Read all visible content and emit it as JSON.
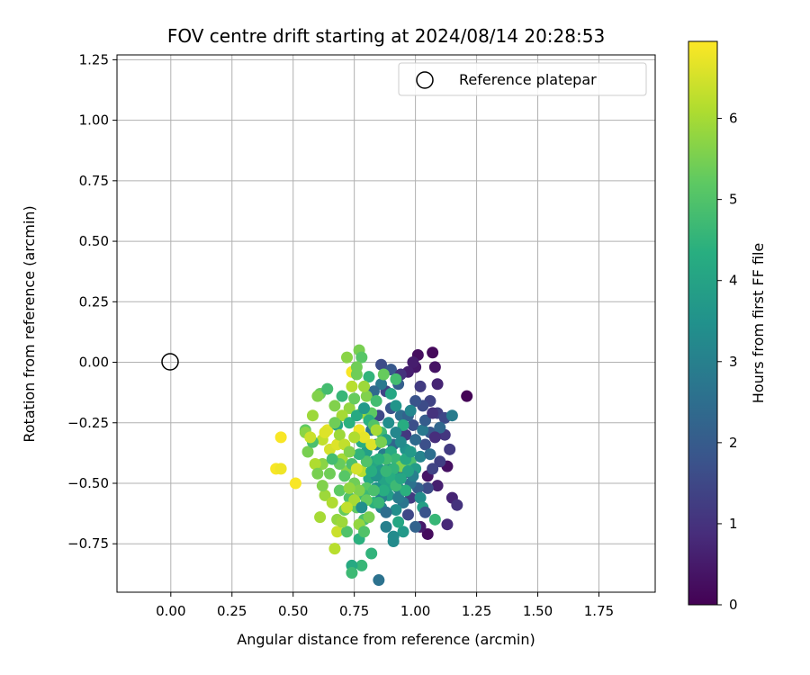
{
  "chart_data": {
    "type": "scatter",
    "title": "FOV centre drift starting at 2024/08/14 20:28:53",
    "xlabel": "Angular distance from reference (arcmin)",
    "ylabel": "Rotation from reference (arcmin)",
    "xlim": [
      -0.22,
      1.98
    ],
    "ylim": [
      -0.95,
      1.27
    ],
    "xticks": [
      0.0,
      0.25,
      0.5,
      0.75,
      1.0,
      1.25,
      1.5,
      1.75
    ],
    "xtick_labels": [
      "0.00",
      "0.25",
      "0.50",
      "0.75",
      "1.00",
      "1.25",
      "1.50",
      "1.75"
    ],
    "yticks": [
      -0.75,
      -0.5,
      -0.25,
      0.0,
      0.25,
      0.5,
      0.75,
      1.0,
      1.25
    ],
    "ytick_labels": [
      "−0.75",
      "−0.50",
      "−0.25",
      "0.00",
      "0.25",
      "0.50",
      "0.75",
      "1.00",
      "1.25"
    ],
    "grid": true,
    "legend": {
      "placement": "top-right",
      "entries": [
        {
          "label": "Reference platepar",
          "marker": "open-circle"
        }
      ]
    },
    "reference_point": {
      "x": 0.0,
      "y": 0.0
    },
    "colorbar": {
      "label": "Hours from first FF file",
      "range": [
        0,
        6.95
      ],
      "ticks": [
        0,
        1,
        2,
        3,
        4,
        5,
        6
      ],
      "tick_labels": [
        "0",
        "1",
        "2",
        "3",
        "4",
        "5",
        "6"
      ],
      "colormap": "viridis"
    },
    "points": [
      {
        "x": 1.21,
        "y": -0.14,
        "c": 0.05
      },
      {
        "x": 1.07,
        "y": 0.04,
        "c": 0.15
      },
      {
        "x": 1.01,
        "y": 0.03,
        "c": 0.25
      },
      {
        "x": 1.08,
        "y": -0.02,
        "c": 0.35
      },
      {
        "x": 1.0,
        "y": -0.02,
        "c": 0.45
      },
      {
        "x": 0.99,
        "y": 0.0,
        "c": 0.55
      },
      {
        "x": 0.97,
        "y": -0.04,
        "c": 0.6
      },
      {
        "x": 1.09,
        "y": -0.09,
        "c": 0.7
      },
      {
        "x": 1.13,
        "y": -0.43,
        "c": 0.3
      },
      {
        "x": 1.05,
        "y": -0.47,
        "c": 0.4
      },
      {
        "x": 1.05,
        "y": -0.71,
        "c": 0.2
      },
      {
        "x": 1.02,
        "y": -0.68,
        "c": 0.5
      },
      {
        "x": 1.15,
        "y": -0.56,
        "c": 0.7
      },
      {
        "x": 1.17,
        "y": -0.59,
        "c": 1.0
      },
      {
        "x": 1.13,
        "y": -0.67,
        "c": 0.8
      },
      {
        "x": 1.14,
        "y": -0.36,
        "c": 1.2
      },
      {
        "x": 1.12,
        "y": -0.3,
        "c": 1.1
      },
      {
        "x": 1.09,
        "y": -0.21,
        "c": 1.3
      },
      {
        "x": 1.12,
        "y": -0.23,
        "c": 1.5
      },
      {
        "x": 1.15,
        "y": -0.22,
        "c": 2.9
      },
      {
        "x": 1.06,
        "y": -0.16,
        "c": 1.4
      },
      {
        "x": 1.03,
        "y": -0.18,
        "c": 1.6
      },
      {
        "x": 1.0,
        "y": -0.16,
        "c": 1.8
      },
      {
        "x": 1.06,
        "y": -0.29,
        "c": 1.9
      },
      {
        "x": 1.1,
        "y": -0.27,
        "c": 2.3
      },
      {
        "x": 1.08,
        "y": -0.31,
        "c": 0.9
      },
      {
        "x": 1.04,
        "y": -0.34,
        "c": 1.7
      },
      {
        "x": 1.1,
        "y": -0.41,
        "c": 1.3
      },
      {
        "x": 1.07,
        "y": -0.44,
        "c": 1.4
      },
      {
        "x": 1.09,
        "y": -0.51,
        "c": 0.6
      },
      {
        "x": 1.05,
        "y": -0.52,
        "c": 1.6
      },
      {
        "x": 1.01,
        "y": -0.52,
        "c": 2.1
      },
      {
        "x": 0.98,
        "y": -0.56,
        "c": 1.2
      },
      {
        "x": 0.97,
        "y": -0.63,
        "c": 1.5
      },
      {
        "x": 1.0,
        "y": -0.68,
        "c": 2.2
      },
      {
        "x": 0.98,
        "y": -0.5,
        "c": 2.6
      },
      {
        "x": 0.95,
        "y": -0.46,
        "c": 2.0
      },
      {
        "x": 0.93,
        "y": -0.41,
        "c": 1.9
      },
      {
        "x": 0.91,
        "y": -0.34,
        "c": 2.3
      },
      {
        "x": 0.96,
        "y": -0.3,
        "c": 1.1
      },
      {
        "x": 0.99,
        "y": -0.26,
        "c": 1.7
      },
      {
        "x": 0.94,
        "y": -0.22,
        "c": 2.5
      },
      {
        "x": 0.9,
        "y": -0.19,
        "c": 1.8
      },
      {
        "x": 0.88,
        "y": -0.12,
        "c": 1.4
      },
      {
        "x": 0.93,
        "y": -0.09,
        "c": 2.1
      },
      {
        "x": 0.86,
        "y": -0.09,
        "c": 2.8
      },
      {
        "x": 0.83,
        "y": -0.12,
        "c": 2.4
      },
      {
        "x": 0.86,
        "y": -0.01,
        "c": 1.6
      },
      {
        "x": 0.9,
        "y": -0.03,
        "c": 1.9
      },
      {
        "x": 0.94,
        "y": -0.05,
        "c": 1.0
      },
      {
        "x": 0.85,
        "y": -0.22,
        "c": 1.5
      },
      {
        "x": 0.82,
        "y": -0.28,
        "c": 2.7
      },
      {
        "x": 0.84,
        "y": -0.34,
        "c": 3.1
      },
      {
        "x": 0.87,
        "y": -0.38,
        "c": 2.9
      },
      {
        "x": 0.89,
        "y": -0.44,
        "c": 3.3
      },
      {
        "x": 0.91,
        "y": -0.47,
        "c": 3.6
      },
      {
        "x": 0.93,
        "y": -0.52,
        "c": 3.0
      },
      {
        "x": 0.95,
        "y": -0.58,
        "c": 2.7
      },
      {
        "x": 0.92,
        "y": -0.61,
        "c": 3.4
      },
      {
        "x": 0.89,
        "y": -0.55,
        "c": 3.8
      },
      {
        "x": 0.87,
        "y": -0.49,
        "c": 4.0
      },
      {
        "x": 0.85,
        "y": -0.44,
        "c": 3.7
      },
      {
        "x": 0.83,
        "y": -0.41,
        "c": 4.1
      },
      {
        "x": 0.8,
        "y": -0.37,
        "c": 3.9
      },
      {
        "x": 0.78,
        "y": -0.33,
        "c": 4.3
      },
      {
        "x": 0.81,
        "y": -0.48,
        "c": 4.2
      },
      {
        "x": 0.84,
        "y": -0.52,
        "c": 3.5
      },
      {
        "x": 0.86,
        "y": -0.6,
        "c": 3.2
      },
      {
        "x": 0.88,
        "y": -0.68,
        "c": 3.0
      },
      {
        "x": 0.91,
        "y": -0.74,
        "c": 3.3
      },
      {
        "x": 0.85,
        "y": -0.9,
        "c": 2.6
      },
      {
        "x": 0.82,
        "y": -0.79,
        "c": 4.5
      },
      {
        "x": 0.78,
        "y": -0.84,
        "c": 4.6
      },
      {
        "x": 0.74,
        "y": -0.84,
        "c": 4.2
      },
      {
        "x": 0.74,
        "y": -0.87,
        "c": 4.7
      },
      {
        "x": 0.77,
        "y": -0.73,
        "c": 4.4
      },
      {
        "x": 0.79,
        "y": -0.65,
        "c": 4.9
      },
      {
        "x": 0.76,
        "y": -0.6,
        "c": 5.2
      },
      {
        "x": 0.73,
        "y": -0.56,
        "c": 5.0
      },
      {
        "x": 0.71,
        "y": -0.61,
        "c": 5.3
      },
      {
        "x": 0.68,
        "y": -0.65,
        "c": 5.8
      },
      {
        "x": 0.67,
        "y": -0.77,
        "c": 6.2
      },
      {
        "x": 0.68,
        "y": -0.7,
        "c": 6.4
      },
      {
        "x": 0.61,
        "y": -0.64,
        "c": 6.0
      },
      {
        "x": 0.63,
        "y": -0.55,
        "c": 5.9
      },
      {
        "x": 0.62,
        "y": -0.51,
        "c": 5.6
      },
      {
        "x": 0.65,
        "y": -0.46,
        "c": 5.4
      },
      {
        "x": 0.62,
        "y": -0.42,
        "c": 5.7
      },
      {
        "x": 0.59,
        "y": -0.42,
        "c": 6.1
      },
      {
        "x": 0.56,
        "y": -0.37,
        "c": 5.5
      },
      {
        "x": 0.55,
        "y": -0.28,
        "c": 5.2
      },
      {
        "x": 0.58,
        "y": -0.22,
        "c": 5.9
      },
      {
        "x": 0.61,
        "y": -0.13,
        "c": 5.3
      },
      {
        "x": 0.64,
        "y": -0.11,
        "c": 4.8
      },
      {
        "x": 0.6,
        "y": -0.14,
        "c": 5.6
      },
      {
        "x": 0.62,
        "y": -0.32,
        "c": 6.3
      },
      {
        "x": 0.65,
        "y": -0.36,
        "c": 6.5
      },
      {
        "x": 0.68,
        "y": -0.34,
        "c": 6.6
      },
      {
        "x": 0.7,
        "y": -0.4,
        "c": 6.0
      },
      {
        "x": 0.72,
        "y": -0.45,
        "c": 5.7
      },
      {
        "x": 0.75,
        "y": -0.5,
        "c": 5.4
      },
      {
        "x": 0.78,
        "y": -0.45,
        "c": 6.2
      },
      {
        "x": 0.8,
        "y": -0.52,
        "c": 5.1
      },
      {
        "x": 0.79,
        "y": -0.55,
        "c": 4.7
      },
      {
        "x": 0.83,
        "y": -0.58,
        "c": 4.4
      },
      {
        "x": 0.81,
        "y": -0.64,
        "c": 5.5
      },
      {
        "x": 0.77,
        "y": -0.67,
        "c": 5.8
      },
      {
        "x": 0.72,
        "y": -0.7,
        "c": 5.0
      },
      {
        "x": 0.69,
        "y": -0.53,
        "c": 5.2
      },
      {
        "x": 0.66,
        "y": -0.58,
        "c": 6.1
      },
      {
        "x": 0.64,
        "y": -0.28,
        "c": 6.7
      },
      {
        "x": 0.45,
        "y": -0.31,
        "c": 6.9
      },
      {
        "x": 0.43,
        "y": -0.44,
        "c": 6.9
      },
      {
        "x": 0.45,
        "y": -0.44,
        "c": 6.8
      },
      {
        "x": 0.51,
        "y": -0.5,
        "c": 6.9
      },
      {
        "x": 0.74,
        "y": -0.04,
        "c": 6.9
      },
      {
        "x": 0.77,
        "y": -0.28,
        "c": 6.8
      },
      {
        "x": 0.79,
        "y": -0.31,
        "c": 6.7
      },
      {
        "x": 0.82,
        "y": -0.34,
        "c": 6.6
      },
      {
        "x": 0.74,
        "y": -0.1,
        "c": 6.2
      },
      {
        "x": 0.72,
        "y": 0.02,
        "c": 5.7
      },
      {
        "x": 0.77,
        "y": 0.05,
        "c": 5.5
      },
      {
        "x": 0.78,
        "y": 0.02,
        "c": 5.1
      },
      {
        "x": 0.76,
        "y": -0.05,
        "c": 5.4
      },
      {
        "x": 0.73,
        "y": -0.19,
        "c": 5.8
      },
      {
        "x": 0.7,
        "y": -0.22,
        "c": 6.0
      },
      {
        "x": 0.67,
        "y": -0.18,
        "c": 5.6
      },
      {
        "x": 0.7,
        "y": -0.14,
        "c": 4.6
      },
      {
        "x": 0.73,
        "y": -0.25,
        "c": 4.4
      },
      {
        "x": 0.68,
        "y": -0.26,
        "c": 4.0
      },
      {
        "x": 0.75,
        "y": -0.15,
        "c": 5.3
      },
      {
        "x": 0.78,
        "y": -0.21,
        "c": 5.9
      },
      {
        "x": 0.8,
        "y": -0.14,
        "c": 5.6
      },
      {
        "x": 0.82,
        "y": -0.21,
        "c": 5.2
      },
      {
        "x": 0.84,
        "y": -0.16,
        "c": 4.8
      },
      {
        "x": 0.81,
        "y": -0.06,
        "c": 4.5
      },
      {
        "x": 0.87,
        "y": -0.05,
        "c": 5.3
      },
      {
        "x": 0.9,
        "y": -0.13,
        "c": 4.1
      },
      {
        "x": 0.92,
        "y": -0.18,
        "c": 3.6
      },
      {
        "x": 0.89,
        "y": -0.25,
        "c": 3.4
      },
      {
        "x": 0.86,
        "y": -0.29,
        "c": 4.7
      },
      {
        "x": 0.88,
        "y": -0.32,
        "c": 3.9
      },
      {
        "x": 0.9,
        "y": -0.37,
        "c": 4.2
      },
      {
        "x": 0.92,
        "y": -0.4,
        "c": 4.6
      },
      {
        "x": 0.94,
        "y": -0.43,
        "c": 5.6
      },
      {
        "x": 0.96,
        "y": -0.36,
        "c": 3.5
      },
      {
        "x": 0.98,
        "y": -0.41,
        "c": 4.9
      },
      {
        "x": 1.0,
        "y": -0.44,
        "c": 3.8
      },
      {
        "x": 1.02,
        "y": -0.39,
        "c": 3.1
      },
      {
        "x": 1.03,
        "y": -0.28,
        "c": 2.8
      },
      {
        "x": 1.0,
        "y": -0.32,
        "c": 2.4
      },
      {
        "x": 0.97,
        "y": -0.22,
        "c": 2.2
      },
      {
        "x": 0.95,
        "y": -0.26,
        "c": 4.3
      },
      {
        "x": 0.92,
        "y": -0.29,
        "c": 3.2
      },
      {
        "x": 0.99,
        "y": -0.47,
        "c": 3.0
      },
      {
        "x": 1.02,
        "y": -0.56,
        "c": 3.4
      },
      {
        "x": 1.03,
        "y": -0.6,
        "c": 3.9
      },
      {
        "x": 1.08,
        "y": -0.65,
        "c": 4.6
      },
      {
        "x": 1.04,
        "y": -0.62,
        "c": 1.8
      },
      {
        "x": 0.95,
        "y": -0.7,
        "c": 3.7
      },
      {
        "x": 0.93,
        "y": -0.66,
        "c": 4.1
      },
      {
        "x": 0.91,
        "y": -0.72,
        "c": 3.3
      },
      {
        "x": 0.88,
        "y": -0.62,
        "c": 2.5
      },
      {
        "x": 0.86,
        "y": -0.56,
        "c": 3.0
      },
      {
        "x": 0.84,
        "y": -0.47,
        "c": 3.6
      },
      {
        "x": 0.82,
        "y": -0.45,
        "c": 4.3
      },
      {
        "x": 0.8,
        "y": -0.41,
        "c": 5.0
      },
      {
        "x": 0.77,
        "y": -0.38,
        "c": 4.5
      },
      {
        "x": 0.74,
        "y": -0.42,
        "c": 4.9
      },
      {
        "x": 0.71,
        "y": -0.47,
        "c": 5.1
      },
      {
        "x": 0.69,
        "y": -0.42,
        "c": 5.3
      },
      {
        "x": 0.66,
        "y": -0.4,
        "c": 4.8
      },
      {
        "x": 0.6,
        "y": -0.46,
        "c": 5.5
      },
      {
        "x": 0.58,
        "y": -0.33,
        "c": 4.9
      },
      {
        "x": 0.55,
        "y": -0.29,
        "c": 5.7
      },
      {
        "x": 0.57,
        "y": -0.31,
        "c": 6.4
      },
      {
        "x": 0.63,
        "y": -0.29,
        "c": 6.6
      },
      {
        "x": 0.67,
        "y": -0.25,
        "c": 5.4
      },
      {
        "x": 0.69,
        "y": -0.3,
        "c": 5.9
      },
      {
        "x": 0.71,
        "y": -0.34,
        "c": 6.3
      },
      {
        "x": 0.73,
        "y": -0.37,
        "c": 5.6
      },
      {
        "x": 0.75,
        "y": -0.31,
        "c": 6.1
      },
      {
        "x": 0.76,
        "y": -0.22,
        "c": 4.2
      },
      {
        "x": 0.79,
        "y": -0.19,
        "c": 3.7
      },
      {
        "x": 0.81,
        "y": -0.24,
        "c": 4.4
      },
      {
        "x": 0.83,
        "y": -0.26,
        "c": 5.0
      },
      {
        "x": 0.86,
        "y": -0.33,
        "c": 5.5
      },
      {
        "x": 0.88,
        "y": -0.4,
        "c": 4.8
      },
      {
        "x": 0.91,
        "y": -0.44,
        "c": 4.5
      },
      {
        "x": 0.89,
        "y": -0.51,
        "c": 4.0
      },
      {
        "x": 0.87,
        "y": -0.53,
        "c": 4.3
      },
      {
        "x": 0.85,
        "y": -0.58,
        "c": 4.6
      },
      {
        "x": 0.83,
        "y": -0.53,
        "c": 4.9
      },
      {
        "x": 0.8,
        "y": -0.57,
        "c": 5.3
      },
      {
        "x": 0.77,
        "y": -0.53,
        "c": 5.6
      },
      {
        "x": 0.75,
        "y": -0.57,
        "c": 6.0
      },
      {
        "x": 0.72,
        "y": -0.6,
        "c": 6.3
      },
      {
        "x": 0.7,
        "y": -0.66,
        "c": 5.9
      },
      {
        "x": 0.79,
        "y": -0.7,
        "c": 5.0
      },
      {
        "x": 0.78,
        "y": -0.6,
        "c": 3.4
      },
      {
        "x": 0.93,
        "y": -0.56,
        "c": 2.9
      },
      {
        "x": 0.96,
        "y": -0.53,
        "c": 4.4
      },
      {
        "x": 0.97,
        "y": -0.45,
        "c": 4.0
      },
      {
        "x": 0.9,
        "y": -0.48,
        "c": 4.3
      },
      {
        "x": 0.92,
        "y": -0.51,
        "c": 4.7
      },
      {
        "x": 0.94,
        "y": -0.48,
        "c": 4.1
      },
      {
        "x": 0.88,
        "y": -0.45,
        "c": 4.6
      },
      {
        "x": 0.96,
        "y": -0.4,
        "c": 4.2
      },
      {
        "x": 0.98,
        "y": -0.37,
        "c": 3.7
      },
      {
        "x": 0.94,
        "y": -0.33,
        "c": 3.3
      },
      {
        "x": 0.85,
        "y": -0.4,
        "c": 4.4
      },
      {
        "x": 0.98,
        "y": -0.2,
        "c": 3.2
      },
      {
        "x": 1.04,
        "y": -0.24,
        "c": 2.0
      },
      {
        "x": 1.06,
        "y": -0.38,
        "c": 2.5
      },
      {
        "x": 1.07,
        "y": -0.21,
        "c": 1.0
      },
      {
        "x": 1.02,
        "y": -0.1,
        "c": 1.2
      },
      {
        "x": 0.92,
        "y": -0.07,
        "c": 4.8
      },
      {
        "x": 0.79,
        "y": -0.1,
        "c": 5.9
      },
      {
        "x": 0.76,
        "y": -0.02,
        "c": 5.4
      },
      {
        "x": 0.84,
        "y": -0.28,
        "c": 6.0
      },
      {
        "x": 0.76,
        "y": -0.44,
        "c": 6.5
      },
      {
        "x": 0.73,
        "y": -0.52,
        "c": 5.8
      }
    ]
  }
}
